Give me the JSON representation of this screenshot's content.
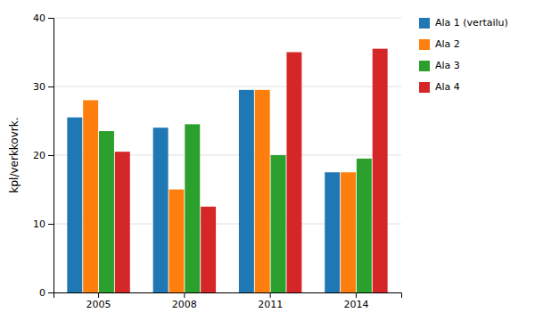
{
  "chart_data": {
    "type": "bar",
    "categories": [
      "2005",
      "2008",
      "2011",
      "2014"
    ],
    "series": [
      {
        "name": "Ala 1 (vertailu)",
        "values": [
          25.5,
          24.0,
          29.5,
          17.5
        ]
      },
      {
        "name": "Ala 2",
        "values": [
          28.0,
          15.0,
          29.5,
          17.5
        ]
      },
      {
        "name": "Ala 3",
        "values": [
          23.5,
          24.5,
          20.0,
          19.5
        ]
      },
      {
        "name": "Ala 4",
        "values": [
          20.5,
          12.5,
          35.0,
          35.5
        ]
      }
    ],
    "ylabel": "kpl/verkkovrk.",
    "ylim": [
      0,
      40
    ],
    "yticks": [
      0,
      10,
      20,
      30,
      40
    ],
    "grid": true,
    "legend": "right"
  }
}
